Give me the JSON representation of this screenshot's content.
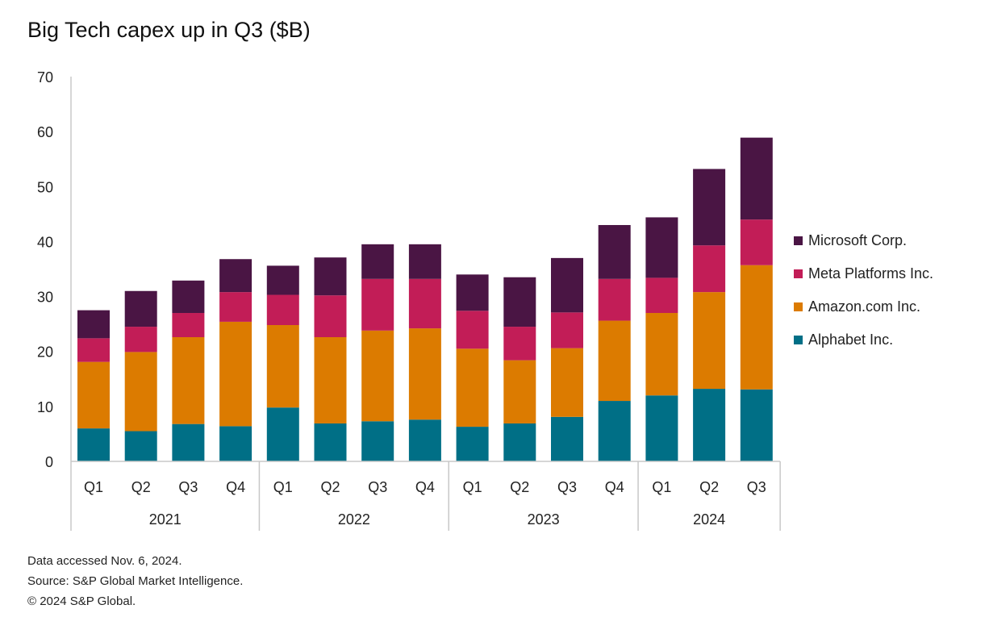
{
  "chart_data": {
    "type": "bar",
    "stacked": true,
    "title": "Big Tech capex up in Q3 ($B)",
    "xlabel": "",
    "ylabel": "",
    "ylim": [
      0,
      70
    ],
    "yticks": [
      0,
      10,
      20,
      30,
      40,
      50,
      60,
      70
    ],
    "grid": false,
    "legend_position": "right",
    "categories": [
      "Q1",
      "Q2",
      "Q3",
      "Q4",
      "Q1",
      "Q2",
      "Q3",
      "Q4",
      "Q1",
      "Q2",
      "Q3",
      "Q4",
      "Q1",
      "Q2",
      "Q3"
    ],
    "groups": [
      {
        "label": "2021",
        "start": 0,
        "count": 4
      },
      {
        "label": "2022",
        "start": 4,
        "count": 4
      },
      {
        "label": "2023",
        "start": 8,
        "count": 4
      },
      {
        "label": "2024",
        "start": 12,
        "count": 3
      }
    ],
    "series": [
      {
        "name": "Alphabet Inc.",
        "color": "#006f86",
        "values": [
          6.0,
          5.5,
          6.8,
          6.4,
          9.8,
          6.9,
          7.3,
          7.6,
          6.3,
          6.9,
          8.1,
          11.0,
          12.0,
          13.2,
          13.1
        ]
      },
      {
        "name": "Amazon.com Inc.",
        "color": "#dc7b00",
        "values": [
          12.1,
          14.4,
          15.8,
          19.0,
          15.0,
          15.7,
          16.5,
          16.6,
          14.2,
          11.5,
          12.5,
          14.6,
          15.0,
          17.6,
          22.6
        ]
      },
      {
        "name": "Meta Platforms Inc.",
        "color": "#c21d57",
        "values": [
          4.3,
          4.6,
          4.4,
          5.4,
          5.5,
          7.6,
          9.4,
          9.0,
          6.9,
          6.1,
          6.5,
          7.6,
          6.4,
          8.5,
          8.3
        ]
      },
      {
        "name": "Microsoft Corp.",
        "color": "#4a1544",
        "values": [
          5.1,
          6.5,
          5.9,
          6.0,
          5.3,
          6.9,
          6.3,
          6.3,
          6.6,
          9.0,
          9.9,
          9.8,
          11.0,
          13.9,
          14.9
        ]
      }
    ]
  },
  "footer": {
    "line1": "Data accessed Nov. 6, 2024.",
    "line2": "Source: S&P Global Market Intelligence.",
    "line3": "© 2024 S&P Global."
  }
}
